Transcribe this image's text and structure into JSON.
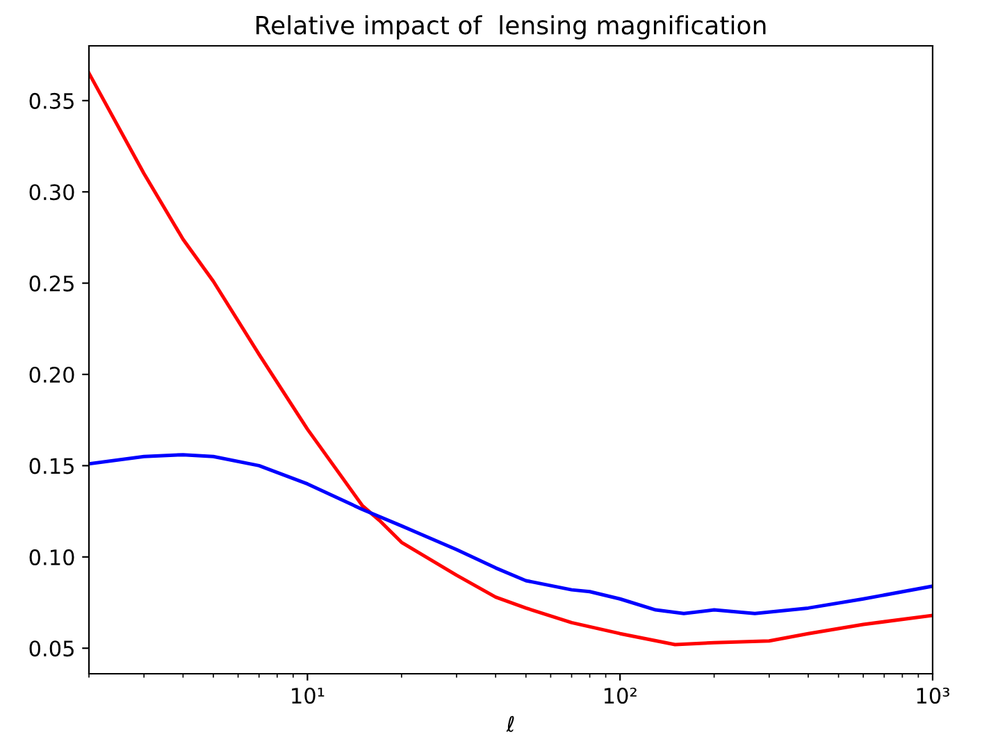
{
  "chart_data": {
    "type": "line",
    "title": "Relative impact of  lensing magnification",
    "xlabel": "ℓ",
    "log": "x",
    "xlim": [
      2,
      1000
    ],
    "xticks": [
      {
        "value": 10,
        "label": "10¹"
      },
      {
        "value": 100,
        "label": "10²"
      },
      {
        "value": 1000,
        "label": "10³"
      }
    ],
    "ylim": [
      0.036,
      0.38
    ],
    "yticks": [
      {
        "value": 0.05,
        "label": "0.05"
      },
      {
        "value": 0.1,
        "label": "0.10"
      },
      {
        "value": 0.15,
        "label": "0.15"
      },
      {
        "value": 0.2,
        "label": "0.20"
      },
      {
        "value": 0.25,
        "label": "0.25"
      },
      {
        "value": 0.3,
        "label": "0.30"
      },
      {
        "value": 0.35,
        "label": "0.35"
      }
    ],
    "grid": false,
    "legend": false,
    "series": [
      {
        "color": "#ff0000",
        "x": [
          2,
          3,
          4,
          5,
          7,
          10,
          15,
          17,
          20,
          30,
          40,
          50,
          70,
          100,
          150,
          200,
          300,
          400,
          600,
          1000
        ],
        "values": [
          0.365,
          0.31,
          0.274,
          0.251,
          0.211,
          0.17,
          0.128,
          0.12,
          0.108,
          0.09,
          0.078,
          0.072,
          0.064,
          0.058,
          0.052,
          0.053,
          0.054,
          0.058,
          0.063,
          0.068
        ]
      },
      {
        "color": "#0000ff",
        "x": [
          2,
          3,
          4,
          5,
          7,
          10,
          15,
          20,
          30,
          40,
          50,
          70,
          80,
          100,
          130,
          160,
          200,
          270,
          400,
          600,
          1000
        ],
        "values": [
          0.151,
          0.155,
          0.156,
          0.155,
          0.15,
          0.14,
          0.126,
          0.117,
          0.104,
          0.094,
          0.087,
          0.082,
          0.081,
          0.077,
          0.071,
          0.069,
          0.071,
          0.069,
          0.072,
          0.077,
          0.084
        ]
      }
    ]
  }
}
